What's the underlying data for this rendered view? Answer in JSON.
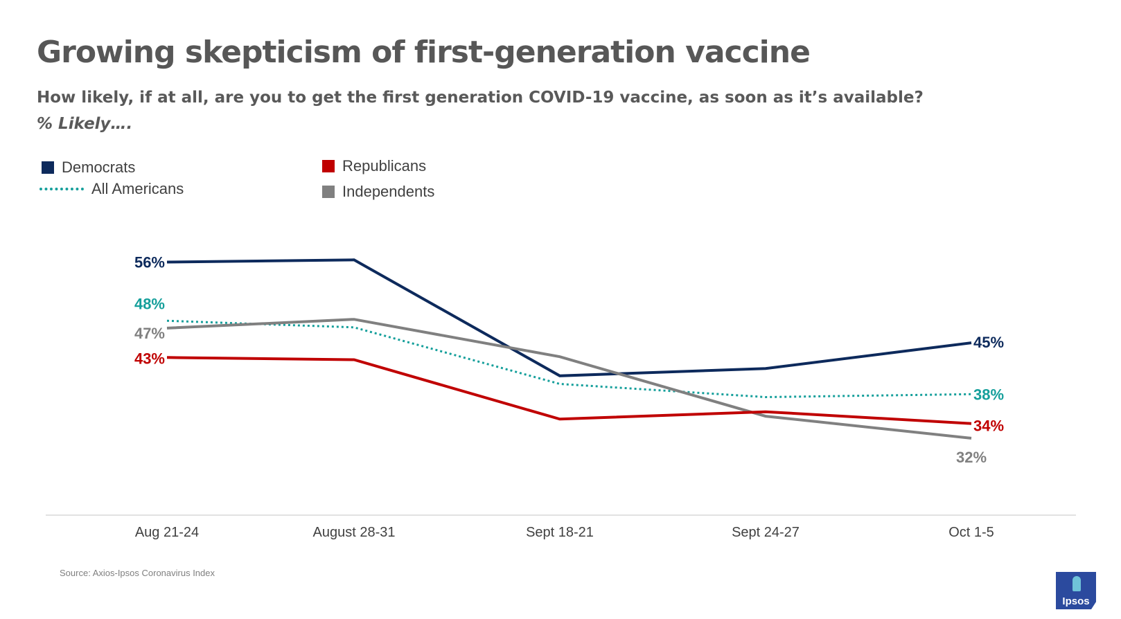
{
  "title": "Growing skepticism of first-generation vaccine",
  "subtitle": "How likely, if at all, are you to get the first generation COVID-19 vaccine, as soon as it’s available?",
  "subtitle2": "% Likely….",
  "source": "Source: Axios-Ipsos Coronavirus Index",
  "logo": "Ipsos",
  "legend": {
    "democrats": "Democrats",
    "all_americans": "All Americans",
    "republicans": "Republicans",
    "independents": "Independents"
  },
  "colors": {
    "democrats": "#0d2a5c",
    "all_americans": "#159f9b",
    "republicans": "#c00000",
    "independents": "#808080",
    "axis": "#d9d9d9",
    "tick": "#404040"
  },
  "chart_data": {
    "type": "line",
    "title": "Growing skepticism of first-generation vaccine",
    "xlabel": "",
    "ylabel": "% Likely",
    "categories": [
      "Aug 21-24",
      "August 28-31",
      "Sept 18-21",
      "Sept 24-27",
      "Oct 1-5"
    ],
    "ylim": [
      20,
      60
    ],
    "grid": false,
    "legend_position": "top-left",
    "series": [
      {
        "key": "democrats",
        "name": "Democrats",
        "style": "solid",
        "values": [
          56,
          56.3,
          40.5,
          41.5,
          45
        ],
        "labels": {
          "first": "56%",
          "last": "45%"
        }
      },
      {
        "key": "all_americans",
        "name": "All Americans",
        "style": "dotted",
        "values": [
          48,
          47.1,
          39.4,
          37.6,
          38
        ],
        "labels": {
          "first": "48%",
          "last": "38%"
        }
      },
      {
        "key": "independents",
        "name": "Independents",
        "style": "solid",
        "values": [
          47,
          48.2,
          43.1,
          35,
          32
        ],
        "labels": {
          "first": "47%",
          "last": "32%"
        }
      },
      {
        "key": "republicans",
        "name": "Republicans",
        "style": "solid",
        "values": [
          43,
          42.7,
          34.6,
          35.6,
          34
        ],
        "labels": {
          "first": "43%",
          "last": "34%"
        }
      }
    ]
  }
}
